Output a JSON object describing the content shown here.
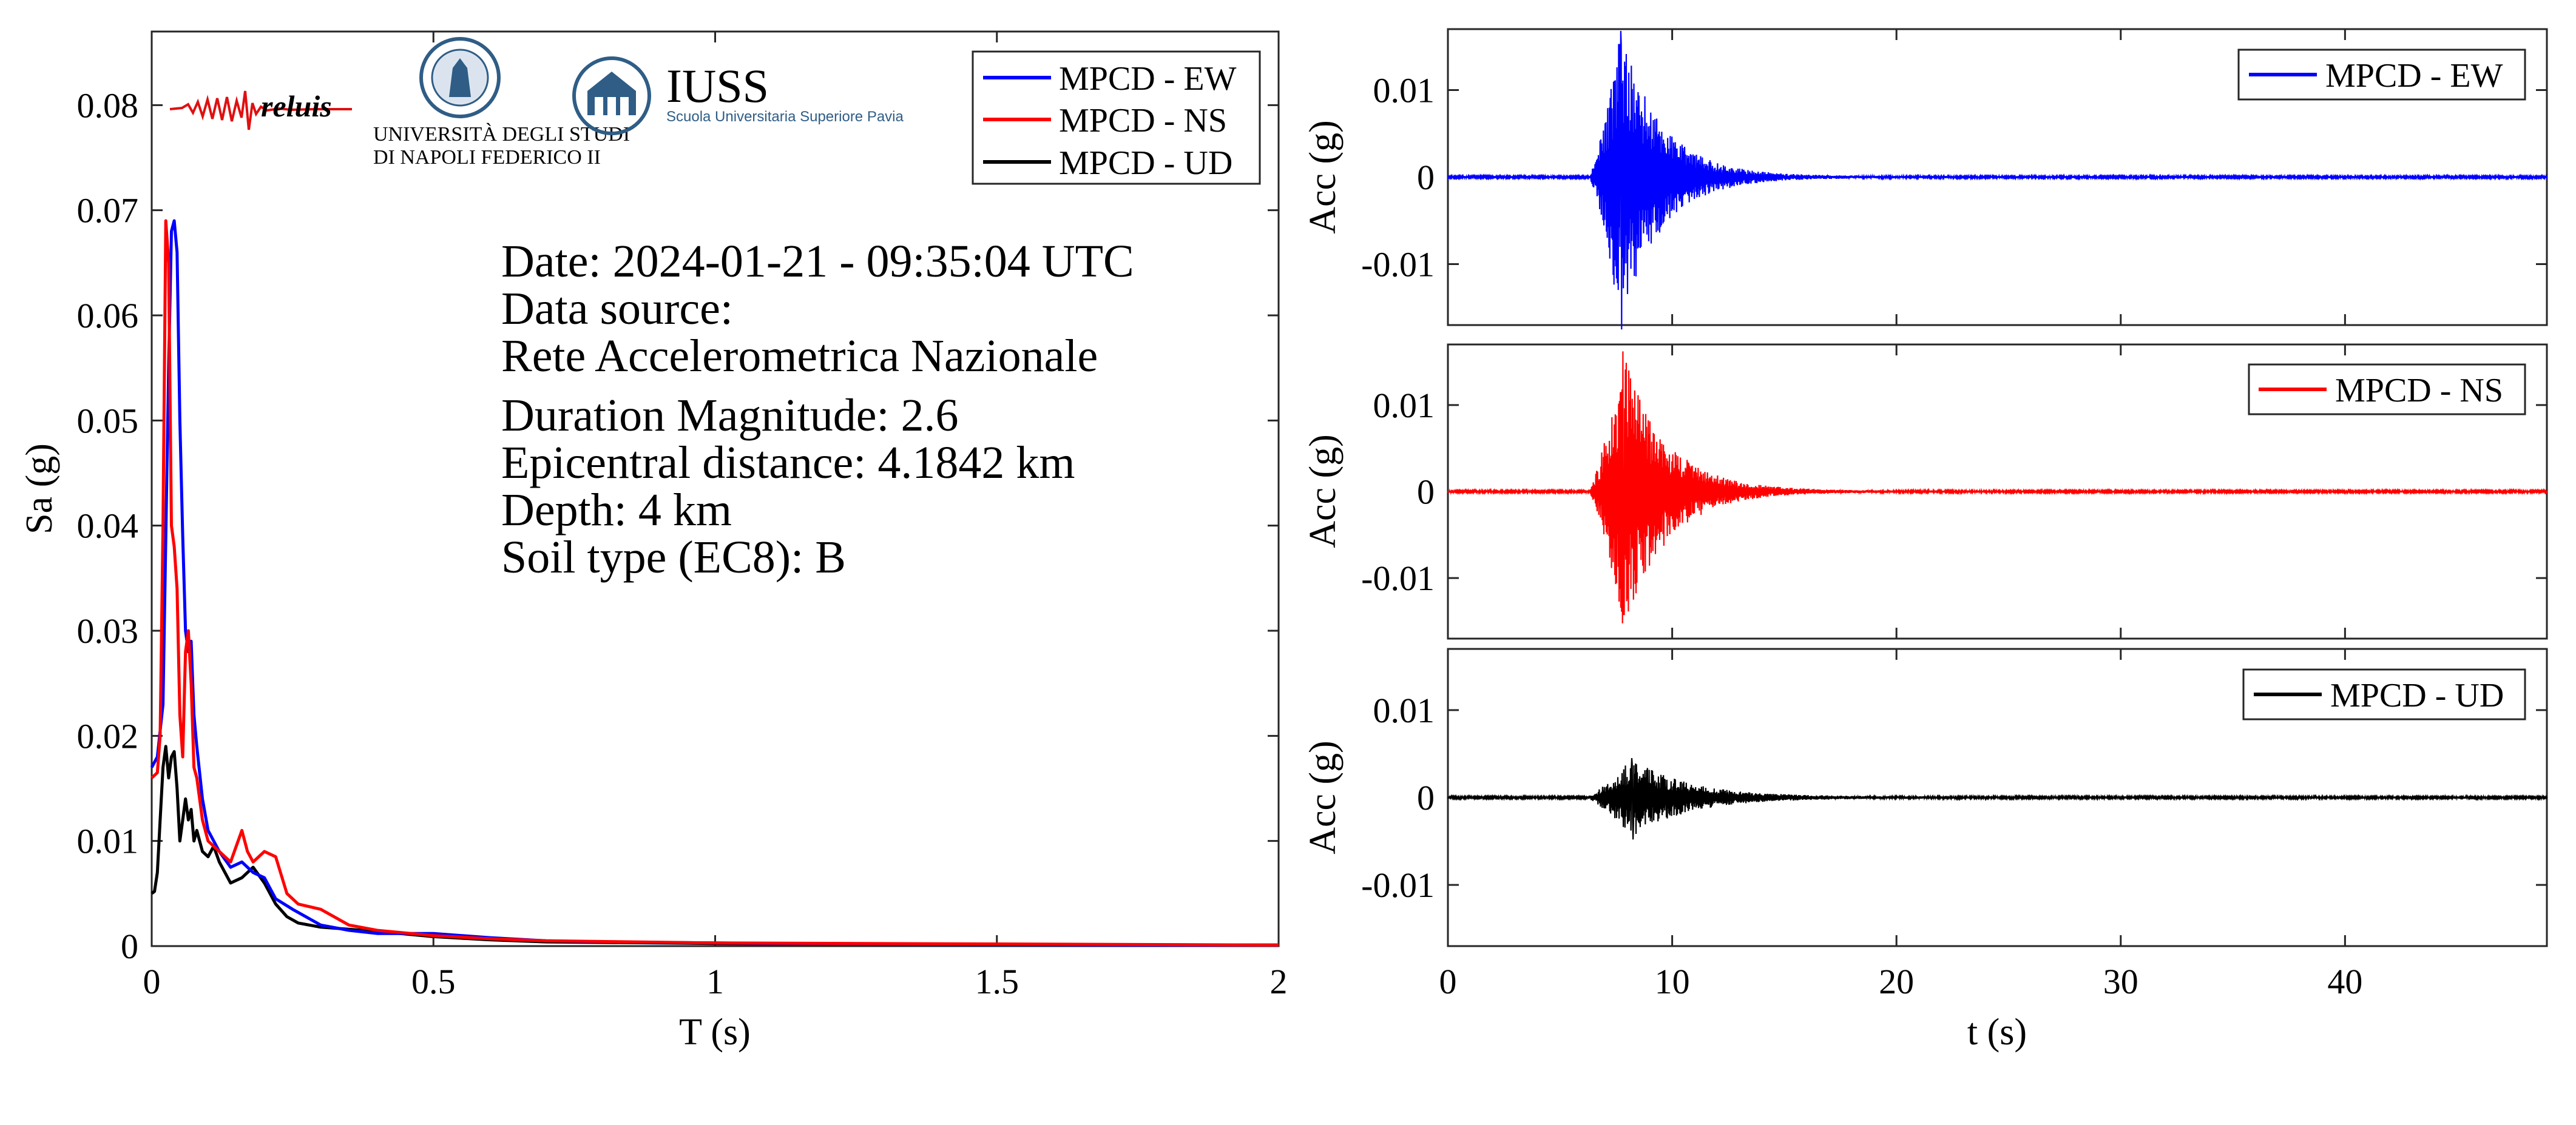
{
  "colors": {
    "ew": "#0000ff",
    "ns": "#ff0000",
    "ud": "#000000",
    "axis": "#262626",
    "logo_blue": "#2f5d86"
  },
  "logos": {
    "reluis": "reluis",
    "unina_line1": "UNIVERSITÀ DEGLI STUDI",
    "unina_line2": "DI NAPOLI FEDERICO II",
    "iuss_title": "IUSS",
    "iuss_sub": "Scuola Universitaria Superiore Pavia"
  },
  "info": {
    "date": "Date: 2024-01-21 - 09:35:04 UTC",
    "source_label": "Data source:",
    "source": "Rete Accelerometrica Nazionale",
    "magnitude": "Duration Magnitude: 2.6",
    "distance": "Epicentral distance: 4.1842 km",
    "depth": "Depth: 4 km",
    "soil": "Soil type (EC8): B"
  },
  "chart_data": [
    {
      "type": "line",
      "xlabel": "T (s)",
      "ylabel": "Sa (g)",
      "xlim": [
        0,
        2
      ],
      "ylim": [
        0,
        0.087
      ],
      "xticks": [
        0,
        0.5,
        1,
        1.5,
        2
      ],
      "xtick_labels": [
        "0",
        "0.5",
        "1",
        "1.5",
        "2"
      ],
      "yticks": [
        0,
        0.01,
        0.02,
        0.03,
        0.04,
        0.05,
        0.06,
        0.07,
        0.08
      ],
      "ytick_labels": [
        "0",
        "0.01",
        "0.02",
        "0.03",
        "0.04",
        "0.05",
        "0.06",
        "0.07",
        "0.08"
      ],
      "legend_position": "top-right",
      "grid": false,
      "series": [
        {
          "name": "MPCD - EW",
          "color": "#0000ff",
          "x": [
            0,
            0.01,
            0.02,
            0.03,
            0.035,
            0.04,
            0.045,
            0.05,
            0.055,
            0.06,
            0.065,
            0.07,
            0.075,
            0.08,
            0.09,
            0.1,
            0.12,
            0.14,
            0.16,
            0.18,
            0.2,
            0.22,
            0.25,
            0.3,
            0.35,
            0.4,
            0.5,
            0.6,
            0.7,
            0.8,
            1,
            1.2,
            1.5,
            1.75,
            2
          ],
          "y": [
            0.017,
            0.018,
            0.023,
            0.055,
            0.068,
            0.069,
            0.066,
            0.05,
            0.039,
            0.03,
            0.028,
            0.029,
            0.022,
            0.019,
            0.014,
            0.011,
            0.009,
            0.0075,
            0.008,
            0.007,
            0.0065,
            0.0045,
            0.0035,
            0.002,
            0.0015,
            0.0012,
            0.0012,
            0.0008,
            0.0005,
            0.0004,
            0.0003,
            0.0002,
            0.00015,
            0.0001,
            0.0001
          ]
        },
        {
          "name": "MPCD - NS",
          "color": "#ff0000",
          "x": [
            0,
            0.01,
            0.015,
            0.02,
            0.025,
            0.03,
            0.035,
            0.04,
            0.045,
            0.05,
            0.055,
            0.06,
            0.065,
            0.07,
            0.075,
            0.08,
            0.09,
            0.1,
            0.12,
            0.14,
            0.16,
            0.17,
            0.18,
            0.2,
            0.22,
            0.24,
            0.26,
            0.3,
            0.35,
            0.4,
            0.5,
            0.6,
            0.7,
            1,
            1.5,
            2
          ],
          "y": [
            0.016,
            0.0165,
            0.02,
            0.04,
            0.069,
            0.065,
            0.04,
            0.038,
            0.034,
            0.022,
            0.018,
            0.028,
            0.03,
            0.025,
            0.017,
            0.016,
            0.012,
            0.01,
            0.009,
            0.008,
            0.011,
            0.009,
            0.008,
            0.009,
            0.0085,
            0.005,
            0.004,
            0.0035,
            0.002,
            0.0015,
            0.001,
            0.0007,
            0.0005,
            0.0003,
            0.0002,
            0.0001
          ]
        },
        {
          "name": "MPCD - UD",
          "color": "#000000",
          "x": [
            0,
            0.005,
            0.01,
            0.015,
            0.02,
            0.025,
            0.03,
            0.035,
            0.04,
            0.045,
            0.05,
            0.055,
            0.06,
            0.065,
            0.07,
            0.075,
            0.08,
            0.09,
            0.1,
            0.11,
            0.12,
            0.14,
            0.16,
            0.18,
            0.2,
            0.22,
            0.24,
            0.26,
            0.3,
            0.35,
            0.4,
            0.5,
            0.6,
            0.7,
            1,
            1.5,
            2
          ],
          "y": [
            0.005,
            0.0052,
            0.007,
            0.012,
            0.017,
            0.019,
            0.016,
            0.018,
            0.0185,
            0.015,
            0.01,
            0.012,
            0.014,
            0.012,
            0.013,
            0.01,
            0.011,
            0.009,
            0.0085,
            0.0095,
            0.008,
            0.006,
            0.0065,
            0.0075,
            0.006,
            0.004,
            0.0028,
            0.0022,
            0.0018,
            0.0016,
            0.0014,
            0.0009,
            0.0006,
            0.0004,
            0.00025,
            0.00015,
            0.0001
          ]
        }
      ]
    },
    {
      "type": "line",
      "ylabel": "Acc (g)",
      "xlim": [
        0,
        49
      ],
      "ylim": [
        -0.017,
        0.017
      ],
      "yticks": [
        -0.01,
        0,
        0.01
      ],
      "ytick_labels": [
        "-0.01",
        "0",
        "0.01"
      ],
      "legend_position": "top-right",
      "series": [
        {
          "name": "MPCD - EW",
          "color": "#0000ff",
          "onset": 6.3,
          "peak_time": 7.7,
          "peak": 0.0168,
          "min": -0.0175,
          "decay": 1.8
        }
      ]
    },
    {
      "type": "line",
      "ylabel": "Acc (g)",
      "xlim": [
        0,
        49
      ],
      "ylim": [
        -0.017,
        0.017
      ],
      "yticks": [
        -0.01,
        0,
        0.01
      ],
      "ytick_labels": [
        "-0.01",
        "0",
        "0.01"
      ],
      "legend_position": "top-right",
      "series": [
        {
          "name": "MPCD - NS",
          "color": "#ff0000",
          "onset": 6.3,
          "peak_time": 7.8,
          "peak": 0.0162,
          "min": -0.0142,
          "decay": 1.9
        }
      ]
    },
    {
      "type": "line",
      "xlabel": "t (s)",
      "ylabel": "Acc (g)",
      "xlim": [
        0,
        49
      ],
      "ylim": [
        -0.017,
        0.017
      ],
      "xticks": [
        0,
        10,
        20,
        30,
        40
      ],
      "xtick_labels": [
        "0",
        "10",
        "20",
        "30",
        "40"
      ],
      "yticks": [
        -0.01,
        0,
        0.01
      ],
      "ytick_labels": [
        "-0.01",
        "0",
        "0.01"
      ],
      "legend_position": "top-right",
      "series": [
        {
          "name": "MPCD - UD",
          "color": "#000000",
          "onset": 6.2,
          "peak_time": 8.2,
          "peak": 0.0045,
          "min": -0.0048,
          "decay": 2.4
        }
      ]
    }
  ]
}
